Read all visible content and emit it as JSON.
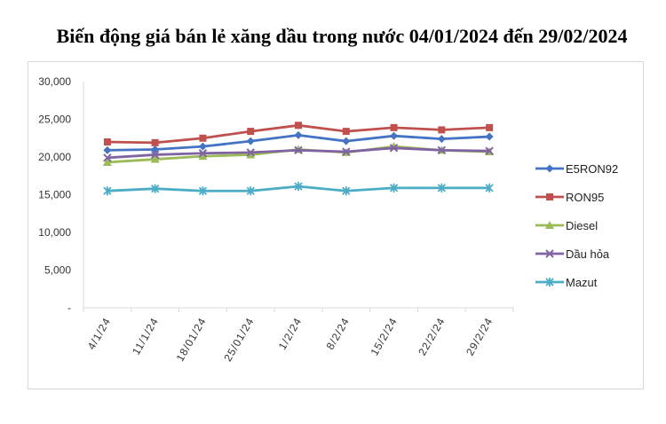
{
  "chart_data": {
    "type": "line",
    "title": "Biến động giá bán lẻ xăng dầu trong nước 04/01/2024 đến 29/02/2024",
    "categories": [
      "4/1/24",
      "11/1/24",
      "18/01/24",
      "25/01/24",
      "1/2/24",
      "8/2/24",
      "15/2/24",
      "22/2/24",
      "29/2/24"
    ],
    "ylim": [
      0,
      30000
    ],
    "yticks": [
      "-",
      "5,000",
      "10,000",
      "15,000",
      "20,000",
      "25,000",
      "30,000"
    ],
    "ytick_values": [
      0,
      5000,
      10000,
      15000,
      20000,
      25000,
      30000
    ],
    "grid": false,
    "legend_position": "right",
    "series": [
      {
        "name": "E5RON92",
        "color": "#4472c4",
        "marker": "diamond",
        "values": [
          20900,
          21000,
          21400,
          22100,
          22900,
          22100,
          22800,
          22400,
          22700
        ]
      },
      {
        "name": "RON95",
        "color": "#c0504d",
        "marker": "square",
        "values": [
          22000,
          21900,
          22500,
          23400,
          24200,
          23400,
          23900,
          23600,
          23900
        ]
      },
      {
        "name": "Diesel",
        "color": "#9bbb59",
        "marker": "triangle",
        "values": [
          19300,
          19700,
          20100,
          20300,
          21000,
          20600,
          21400,
          20900,
          20700
        ]
      },
      {
        "name": "Dầu hỏa",
        "color": "#8064a2",
        "marker": "x",
        "values": [
          19900,
          20300,
          20500,
          20600,
          20900,
          20700,
          21200,
          20900,
          20800
        ]
      },
      {
        "name": "Mazut",
        "color": "#4bacc6",
        "marker": "star",
        "values": [
          15500,
          15800,
          15500,
          15500,
          16100,
          15500,
          15900,
          15900,
          15900
        ]
      }
    ]
  }
}
